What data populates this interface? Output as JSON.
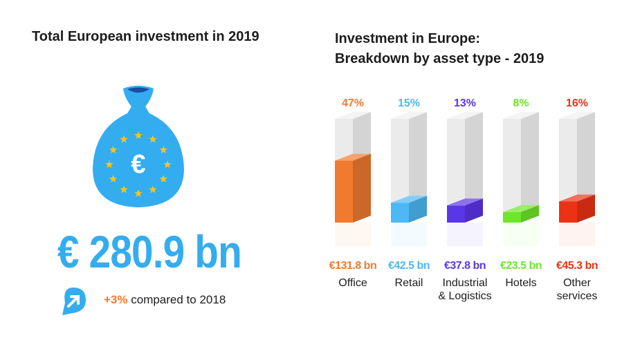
{
  "left": {
    "title": "Total European investment in 2019",
    "bag_symbol": "€",
    "total": "€ 280.9 bn",
    "growth_pct": "+3%",
    "growth_text": "compared to 2018",
    "icons": [
      "money-bag-icon",
      "eu-star-icon",
      "arrow-up-right-icon"
    ],
    "colors": {
      "accent": "#34adf0",
      "stars": "#f7c31b",
      "growth": "#f07a2e"
    }
  },
  "right": {
    "title_line1": "Investment in Europe:",
    "title_line2": "Breakdown by asset type - 2019"
  },
  "chart_data": {
    "type": "bar",
    "title": "Investment in Europe: Breakdown by asset type - 2019",
    "categories": [
      "Office",
      "Retail",
      "Industrial & Logistics",
      "Hotels",
      "Other services"
    ],
    "category_lines": [
      [
        "Office"
      ],
      [
        "Retail"
      ],
      [
        "Industrial",
        "& Logistics"
      ],
      [
        "Hotels"
      ],
      [
        "Other",
        "services"
      ]
    ],
    "values": [
      47,
      15,
      13,
      8,
      16
    ],
    "value_labels": [
      "47%",
      "15%",
      "13%",
      "8%",
      "16%"
    ],
    "amounts_bn": [
      131.8,
      42.5,
      37.8,
      23.5,
      45.3
    ],
    "amount_labels": [
      "€131.8 bn",
      "€42.5 bn",
      "€37.8 bn",
      "€23.5 bn",
      "€45.3 bn"
    ],
    "colors": [
      "#f07a2e",
      "#4cb8f5",
      "#5b35e8",
      "#6ee62a",
      "#eb3214"
    ],
    "ylim": [
      0,
      100
    ]
  }
}
